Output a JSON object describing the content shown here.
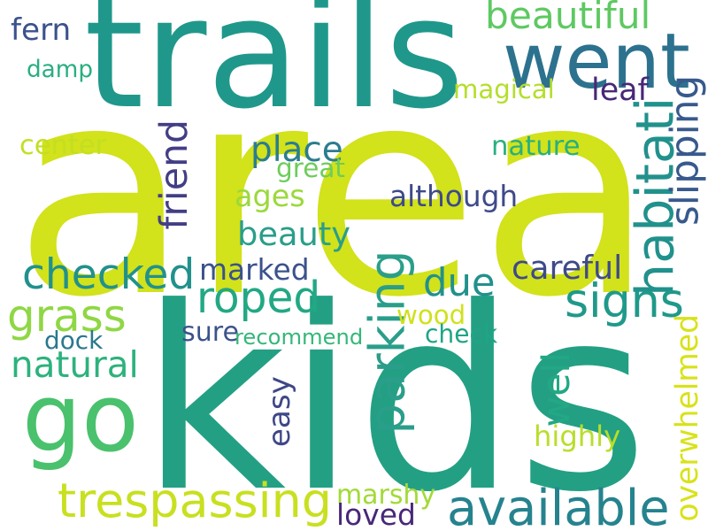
{
  "words": [
    {
      "id": "area",
      "text": "area",
      "color": "#d2e21b",
      "vertical": false
    },
    {
      "id": "kids",
      "text": "kids",
      "color": "#23a083",
      "vertical": false
    },
    {
      "id": "trails",
      "text": "trails",
      "color": "#1f988b",
      "vertical": false
    },
    {
      "id": "went",
      "text": "went",
      "color": "#2c728e",
      "vertical": false
    },
    {
      "id": "go",
      "text": "go",
      "color": "#4ac16d",
      "vertical": false
    },
    {
      "id": "trespassing",
      "text": "trespassing",
      "color": "#c8e020",
      "vertical": false
    },
    {
      "id": "available",
      "text": "available",
      "color": "#25838e",
      "vertical": false
    },
    {
      "id": "habitati",
      "text": "habitati",
      "color": "#21918c",
      "vertical": true
    },
    {
      "id": "parking",
      "text": "parking",
      "color": "#2a9e8a",
      "vertical": true
    },
    {
      "id": "checked",
      "text": "checked",
      "color": "#21918c",
      "vertical": false
    },
    {
      "id": "roped",
      "text": "roped",
      "color": "#22a884",
      "vertical": false
    },
    {
      "id": "grass",
      "text": "grass",
      "color": "#8fd744",
      "vertical": false
    },
    {
      "id": "due",
      "text": "due",
      "color": "#21918c",
      "vertical": false
    },
    {
      "id": "signs",
      "text": "signs",
      "color": "#1f998a",
      "vertical": false
    },
    {
      "id": "place",
      "text": "place",
      "color": "#2b7d8e",
      "vertical": false
    },
    {
      "id": "beauty",
      "text": "beauty",
      "color": "#2a9e8a",
      "vertical": false
    },
    {
      "id": "beautiful",
      "text": "beautiful",
      "color": "#5ec962",
      "vertical": false
    },
    {
      "id": "natural",
      "text": "natural",
      "color": "#2db27d",
      "vertical": false
    },
    {
      "id": "marked",
      "text": "marked",
      "color": "#3b528b",
      "vertical": false
    },
    {
      "id": "friend",
      "text": "friend",
      "color": "#433e85",
      "vertical": true
    },
    {
      "id": "ages",
      "text": "ages",
      "color": "#9bd93c",
      "vertical": false
    },
    {
      "id": "although",
      "text": "although",
      "color": "#3e4a89",
      "vertical": false
    },
    {
      "id": "slipping",
      "text": "slipping",
      "color": "#38598c",
      "vertical": true
    },
    {
      "id": "overwhelmed",
      "text": "overwhelmed",
      "color": "#d8e219",
      "vertical": true
    },
    {
      "id": "easy",
      "text": "easy",
      "color": "#3f4788",
      "vertical": true
    },
    {
      "id": "well",
      "text": "well",
      "color": "#22a884",
      "vertical": true
    },
    {
      "id": "careful",
      "text": "careful",
      "color": "#3e4a89",
      "vertical": false
    },
    {
      "id": "fern",
      "text": "fern",
      "color": "#3b528b",
      "vertical": false
    },
    {
      "id": "damp",
      "text": "damp",
      "color": "#29af7f",
      "vertical": false
    },
    {
      "id": "magical",
      "text": "magical",
      "color": "#b5de2b",
      "vertical": false
    },
    {
      "id": "leaf",
      "text": "leaf",
      "color": "#482878",
      "vertical": false
    },
    {
      "id": "center",
      "text": "center",
      "color": "#c2df23",
      "vertical": false
    },
    {
      "id": "nature",
      "text": "nature",
      "color": "#29af7f",
      "vertical": false
    },
    {
      "id": "great",
      "text": "great",
      "color": "#6ccd5a",
      "vertical": false
    },
    {
      "id": "wood",
      "text": "wood",
      "color": "#d0e11c",
      "vertical": false
    },
    {
      "id": "dock",
      "text": "dock",
      "color": "#2a788e",
      "vertical": false
    },
    {
      "id": "sure",
      "text": "sure",
      "color": "#3b528b",
      "vertical": false
    },
    {
      "id": "recommend",
      "text": "recommend",
      "color": "#35b779",
      "vertical": false
    },
    {
      "id": "check",
      "text": "check",
      "color": "#20a486",
      "vertical": false
    },
    {
      "id": "highly",
      "text": "highly",
      "color": "#b8de29",
      "vertical": false
    },
    {
      "id": "marshy",
      "text": "marshy",
      "color": "#a2da37",
      "vertical": false
    },
    {
      "id": "loved",
      "text": "loved",
      "color": "#482878",
      "vertical": false
    }
  ]
}
